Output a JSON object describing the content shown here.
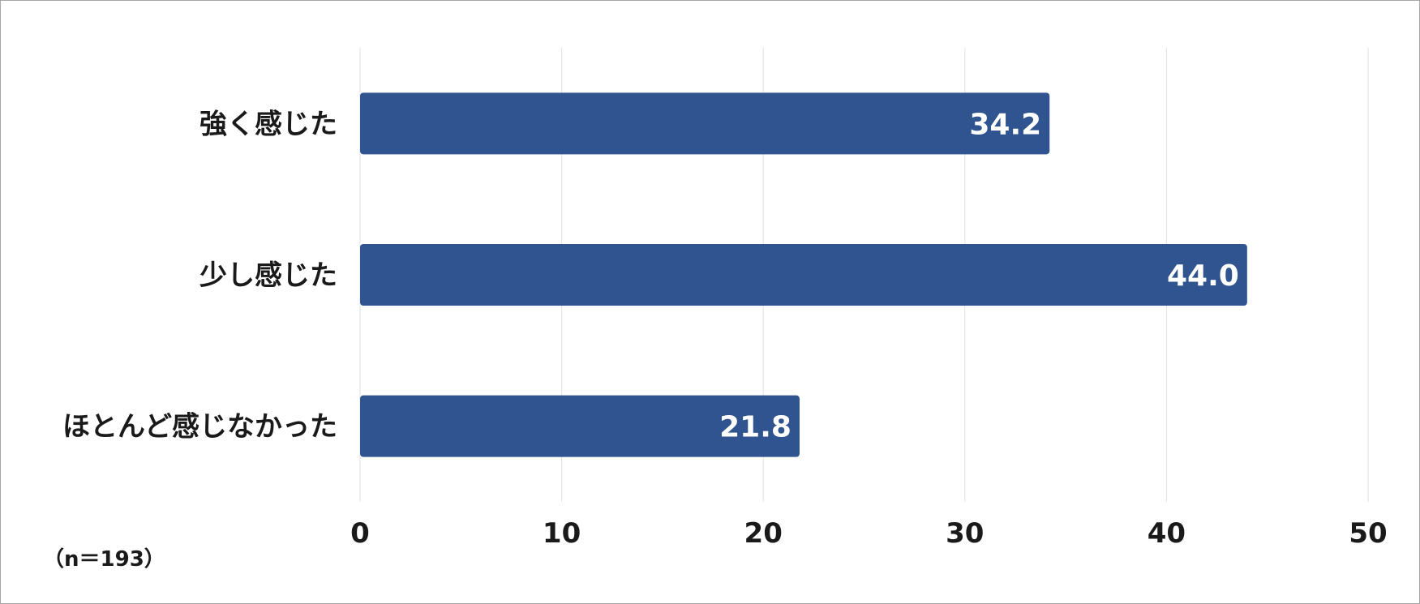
{
  "note": "（n＝193）",
  "colors": {
    "bar": "#30548f",
    "grid": "#e2e2e2",
    "frame": "#a6a6a6",
    "text": "#1a1a1a",
    "value_text": "#ffffff"
  },
  "chart_data": {
    "type": "bar",
    "orientation": "horizontal",
    "categories": [
      "強く感じた",
      "少し感じた",
      "ほとんど感じなかった"
    ],
    "values": [
      34.2,
      44.0,
      21.8
    ],
    "value_labels": [
      "34.2",
      "44.0",
      "21.8"
    ],
    "xlim": [
      0,
      50
    ],
    "xticks": [
      "0",
      "10",
      "20",
      "30",
      "40",
      "50"
    ],
    "grid": "vertical",
    "legend": "none",
    "title": "",
    "xlabel": "",
    "ylabel": ""
  }
}
